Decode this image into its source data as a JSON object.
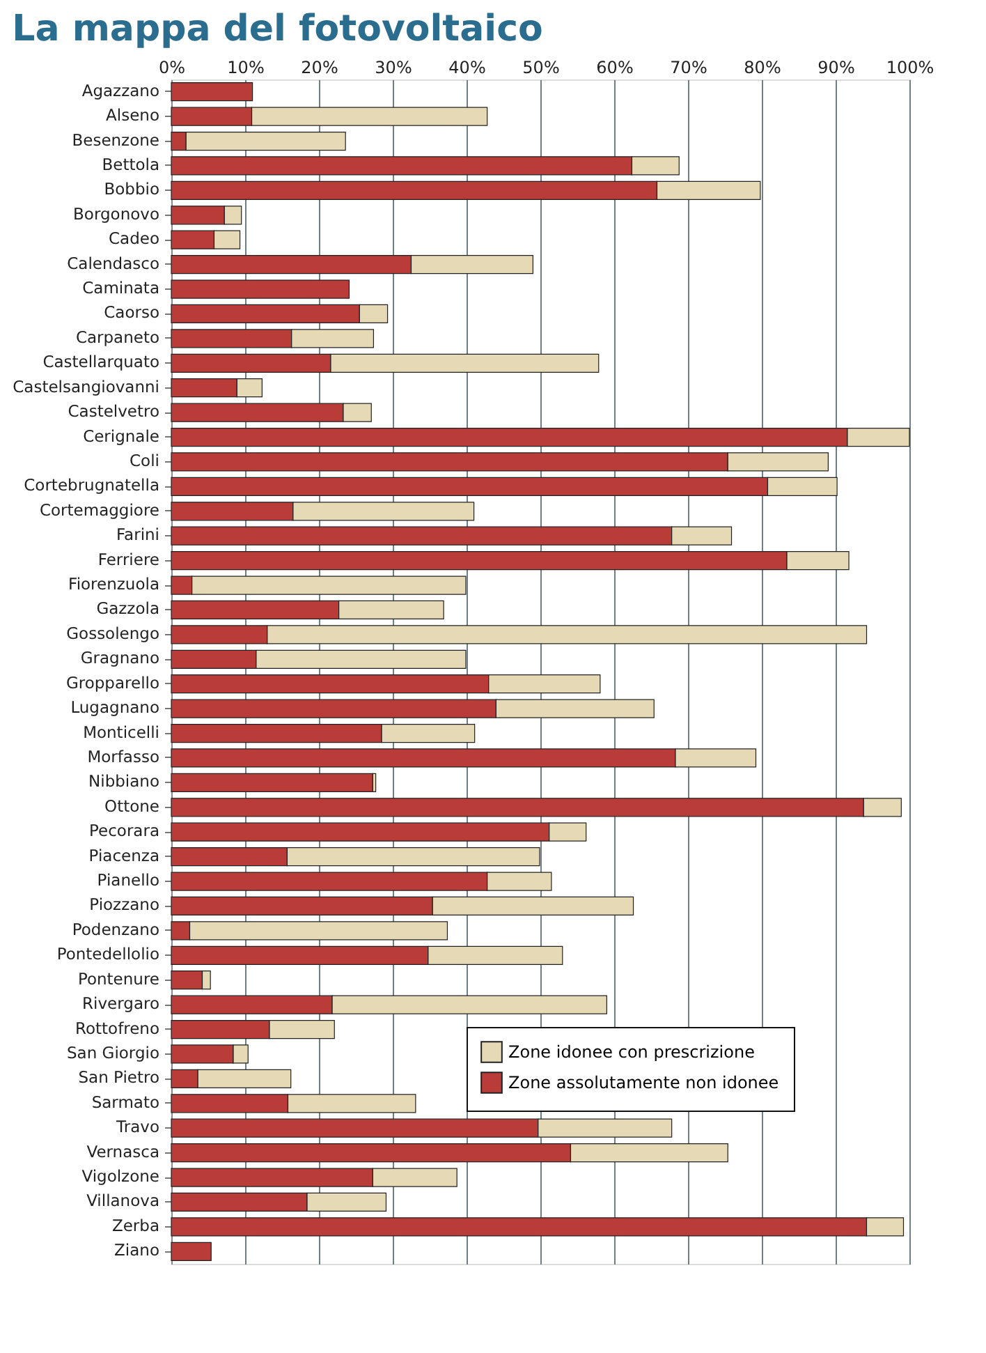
{
  "chart_data": {
    "type": "bar",
    "orientation": "horizontal",
    "stacked": true,
    "title": "La mappa del fotovoltaico",
    "categories": [
      "Agazzano",
      "Alseno",
      "Besenzone",
      "Bettola",
      "Bobbio",
      "Borgonovo",
      "Cadeo",
      "Calendasco",
      "Caminata",
      "Caorso",
      "Carpaneto",
      "Castellarquato",
      "Castelsangiovanni",
      "Castelvetro",
      "Cerignale",
      "Coli",
      "Cortebrugnatella",
      "Cortemaggiore",
      "Farini",
      "Ferriere",
      "Fiorenzuola",
      "Gazzola",
      "Gossolengo",
      "Gragnano",
      "Gropparello",
      "Lugagnano",
      "Monticelli",
      "Morfasso",
      "Nibbiano",
      "Ottone",
      "Pecorara",
      "Piacenza",
      "Pianello",
      "Piozzano",
      "Podenzano",
      "Pontedellolio",
      "Pontenure",
      "Rivergaro",
      "Rottofreno",
      "San Giorgio",
      "San Pietro",
      "Sarmato",
      "Travo",
      "Vernasca",
      "Vigolzone",
      "Villanova",
      "Zerba",
      "Ziano"
    ],
    "series": [
      {
        "name": "Zone assolutamente non idonee",
        "color": "#b93c38",
        "values": [
          11.0,
          10.9,
          2.0,
          62.4,
          65.8,
          7.2,
          5.8,
          32.5,
          24.1,
          25.5,
          16.3,
          21.6,
          8.9,
          23.3,
          91.6,
          75.4,
          80.8,
          16.5,
          67.8,
          83.4,
          2.8,
          22.7,
          13.0,
          11.5,
          43.0,
          44.0,
          28.5,
          68.3,
          27.3,
          93.8,
          51.2,
          15.7,
          42.8,
          35.4,
          2.5,
          34.8,
          4.2,
          21.8,
          13.3,
          8.4,
          3.6,
          15.8,
          49.7,
          54.1,
          27.3,
          18.4,
          94.2,
          5.4
        ]
      },
      {
        "name": "Zone idonee con prescrizione",
        "color": "#e6d9b5",
        "values": [
          null,
          31.9,
          21.6,
          6.4,
          14.0,
          2.3,
          3.5,
          16.5,
          null,
          3.8,
          11.1,
          36.3,
          3.4,
          3.8,
          8.4,
          13.6,
          9.4,
          24.5,
          8.1,
          8.4,
          37.1,
          14.2,
          81.2,
          28.4,
          15.1,
          21.4,
          12.6,
          10.9,
          0.4,
          5.1,
          5.0,
          34.2,
          8.7,
          27.2,
          34.9,
          18.2,
          1.1,
          37.2,
          8.8,
          2.0,
          12.6,
          17.3,
          18.1,
          21.3,
          11.4,
          10.7,
          5.0,
          null
        ]
      }
    ],
    "xlim": [
      0,
      100
    ],
    "xticks": [
      {
        "value": 0,
        "label": "0%"
      },
      {
        "value": 10,
        "label": "10%"
      },
      {
        "value": 20,
        "label": "20%"
      },
      {
        "value": 30,
        "label": "30%"
      },
      {
        "value": 40,
        "label": "40%"
      },
      {
        "value": 50,
        "label": "50%"
      },
      {
        "value": 60,
        "label": "60%"
      },
      {
        "value": 70,
        "label": "70%"
      },
      {
        "value": 80,
        "label": "80%"
      },
      {
        "value": 90,
        "label": "90%"
      },
      {
        "value": 100,
        "label": "100%"
      }
    ],
    "grid": "x",
    "legend": "bottom right"
  }
}
